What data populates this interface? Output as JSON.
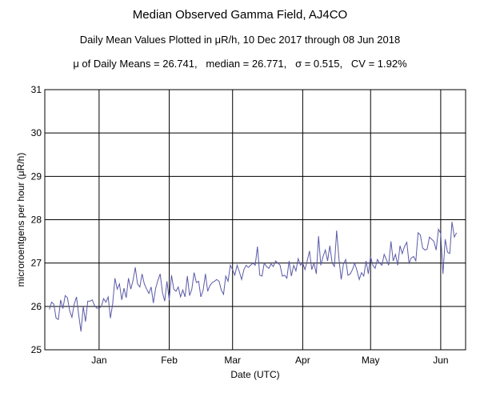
{
  "chart_data": {
    "type": "line",
    "title": "Median Observed Gamma Field, AJ4CO",
    "subtitle": "Daily Mean Values Plotted in μR/h, 10 Dec 2017 through 08 Jun 2018",
    "stats_line": "μ of Daily Means = 26.741,   median = 26.771,   σ = 0.515,   CV = 1.92%",
    "xlabel": "Date (UTC)",
    "ylabel": "microroentgens per hour (μR/h)",
    "ylim": [
      25,
      31
    ],
    "xlim": [
      "2017-12-08",
      "2018-06-12"
    ],
    "y_ticks": [
      "25",
      "26",
      "27",
      "28",
      "29",
      "30",
      "31"
    ],
    "x_tick_labels": [
      "Jan",
      "Feb",
      "Mar",
      "Apr",
      "May",
      "Jun"
    ],
    "x_gridlines": [
      "2018-01-01",
      "2018-02-01",
      "2018-03-01",
      "2018-04-01",
      "2018-05-01",
      "2018-06-01"
    ],
    "grid": true,
    "line_color": "#5a5aa8",
    "series": [
      {
        "x": [
          "2017-12-10",
          "2017-12-11",
          "2017-12-12",
          "2017-12-13",
          "2017-12-14",
          "2017-12-15",
          "2017-12-16",
          "2017-12-17",
          "2017-12-18",
          "2017-12-19",
          "2017-12-20",
          "2017-12-21",
          "2017-12-22",
          "2017-12-23",
          "2017-12-24",
          "2017-12-25",
          "2017-12-26",
          "2017-12-27",
          "2017-12-28",
          "2017-12-29",
          "2017-12-30",
          "2017-12-31",
          "2018-01-01",
          "2018-01-02",
          "2018-01-03",
          "2018-01-04",
          "2018-01-05",
          "2018-01-06",
          "2018-01-07",
          "2018-01-08",
          "2018-01-09",
          "2018-01-10",
          "2018-01-11",
          "2018-01-12",
          "2018-01-13",
          "2018-01-14",
          "2018-01-15",
          "2018-01-16",
          "2018-01-17",
          "2018-01-18",
          "2018-01-19",
          "2018-01-20",
          "2018-01-21",
          "2018-01-22",
          "2018-01-23",
          "2018-01-24",
          "2018-01-25",
          "2018-01-26",
          "2018-01-27",
          "2018-01-28",
          "2018-01-29",
          "2018-01-30",
          "2018-01-31",
          "2018-02-01",
          "2018-02-02",
          "2018-02-03",
          "2018-02-04",
          "2018-02-05",
          "2018-02-06",
          "2018-02-07",
          "2018-02-08",
          "2018-02-09",
          "2018-02-10",
          "2018-02-11",
          "2018-02-12",
          "2018-02-13",
          "2018-02-14",
          "2018-02-15",
          "2018-02-16",
          "2018-02-17",
          "2018-02-18",
          "2018-02-19",
          "2018-02-20",
          "2018-02-21",
          "2018-02-22",
          "2018-02-23",
          "2018-02-24",
          "2018-02-25",
          "2018-02-26",
          "2018-02-27",
          "2018-02-28",
          "2018-03-01",
          "2018-03-02",
          "2018-03-03",
          "2018-03-04",
          "2018-03-05",
          "2018-03-06",
          "2018-03-07",
          "2018-03-08",
          "2018-03-09",
          "2018-03-10",
          "2018-03-11",
          "2018-03-12",
          "2018-03-13",
          "2018-03-14",
          "2018-03-15",
          "2018-03-16",
          "2018-03-17",
          "2018-03-18",
          "2018-03-19",
          "2018-03-20",
          "2018-03-21",
          "2018-03-22",
          "2018-03-23",
          "2018-03-24",
          "2018-03-25",
          "2018-03-26",
          "2018-03-27",
          "2018-03-28",
          "2018-03-29",
          "2018-03-30",
          "2018-03-31",
          "2018-04-01",
          "2018-04-02",
          "2018-04-03",
          "2018-04-04",
          "2018-04-05",
          "2018-04-06",
          "2018-04-07",
          "2018-04-08",
          "2018-04-09",
          "2018-04-10",
          "2018-04-11",
          "2018-04-12",
          "2018-04-13",
          "2018-04-14",
          "2018-04-15",
          "2018-04-16",
          "2018-04-17",
          "2018-04-18",
          "2018-04-19",
          "2018-04-20",
          "2018-04-21",
          "2018-04-22",
          "2018-04-23",
          "2018-04-24",
          "2018-04-25",
          "2018-04-26",
          "2018-04-27",
          "2018-04-28",
          "2018-04-29",
          "2018-04-30",
          "2018-05-01",
          "2018-05-02",
          "2018-05-03",
          "2018-05-04",
          "2018-05-05",
          "2018-05-06",
          "2018-05-07",
          "2018-05-08",
          "2018-05-09",
          "2018-05-10",
          "2018-05-11",
          "2018-05-12",
          "2018-05-13",
          "2018-05-14",
          "2018-05-15",
          "2018-05-16",
          "2018-05-17",
          "2018-05-18",
          "2018-05-19",
          "2018-05-20",
          "2018-05-21",
          "2018-05-22",
          "2018-05-23",
          "2018-05-24",
          "2018-05-25",
          "2018-05-26",
          "2018-05-27",
          "2018-05-28",
          "2018-05-29",
          "2018-05-30",
          "2018-05-31",
          "2018-06-01",
          "2018-06-02",
          "2018-06-03",
          "2018-06-04",
          "2018-06-05",
          "2018-06-06",
          "2018-06-07",
          "2018-06-08"
        ],
        "y": [
          25.93,
          26.1,
          26.05,
          25.73,
          25.7,
          26.15,
          25.95,
          26.25,
          26.2,
          25.9,
          25.75,
          26.05,
          26.22,
          25.8,
          25.42,
          26.0,
          25.65,
          26.12,
          26.12,
          26.15,
          26.02,
          25.96,
          25.96,
          26.0,
          26.18,
          26.1,
          26.22,
          25.73,
          26.05,
          26.65,
          26.4,
          26.52,
          26.15,
          26.42,
          26.2,
          26.65,
          26.4,
          26.6,
          26.9,
          26.52,
          26.45,
          26.75,
          26.52,
          26.4,
          26.3,
          26.45,
          26.08,
          26.42,
          26.6,
          26.75,
          26.32,
          26.12,
          26.58,
          26.15,
          26.72,
          26.4,
          26.35,
          26.45,
          26.22,
          26.38,
          26.22,
          26.7,
          26.25,
          26.4,
          26.78,
          26.55,
          26.58,
          26.22,
          26.38,
          26.75,
          26.35,
          26.48,
          26.55,
          26.58,
          26.62,
          26.58,
          26.38,
          26.28,
          26.7,
          26.58,
          26.95,
          26.85,
          26.72,
          26.95,
          26.8,
          26.62,
          26.85,
          26.95,
          26.9,
          26.95,
          27.0,
          26.95,
          27.38,
          26.72,
          26.7,
          27.0,
          26.92,
          26.88,
          26.98,
          26.92,
          27.05,
          27.0,
          26.95,
          26.7,
          26.72,
          26.65,
          27.05,
          26.7,
          26.95,
          26.82,
          27.1,
          26.95,
          27.0,
          26.85,
          27.05,
          27.28,
          26.85,
          27.0,
          26.75,
          27.62,
          26.95,
          27.15,
          27.3,
          27.05,
          27.4,
          27.0,
          26.92,
          27.75,
          27.12,
          26.62,
          26.98,
          27.08,
          26.72,
          26.75,
          26.85,
          27.0,
          26.82,
          26.62,
          26.78,
          26.7,
          27.05,
          26.75,
          27.15,
          26.95,
          26.88,
          27.08,
          27.0,
          26.95,
          27.2,
          27.08,
          26.95,
          27.5,
          27.05,
          27.2,
          26.95,
          27.4,
          27.22,
          27.38,
          27.48,
          27.0,
          27.12,
          27.15,
          27.05,
          27.7,
          27.65,
          27.35,
          27.3,
          27.32,
          27.6,
          27.55,
          27.5,
          27.3,
          27.78,
          27.68,
          26.75,
          27.55,
          27.25,
          27.22,
          27.95,
          27.6,
          27.7
        ]
      }
    ]
  }
}
